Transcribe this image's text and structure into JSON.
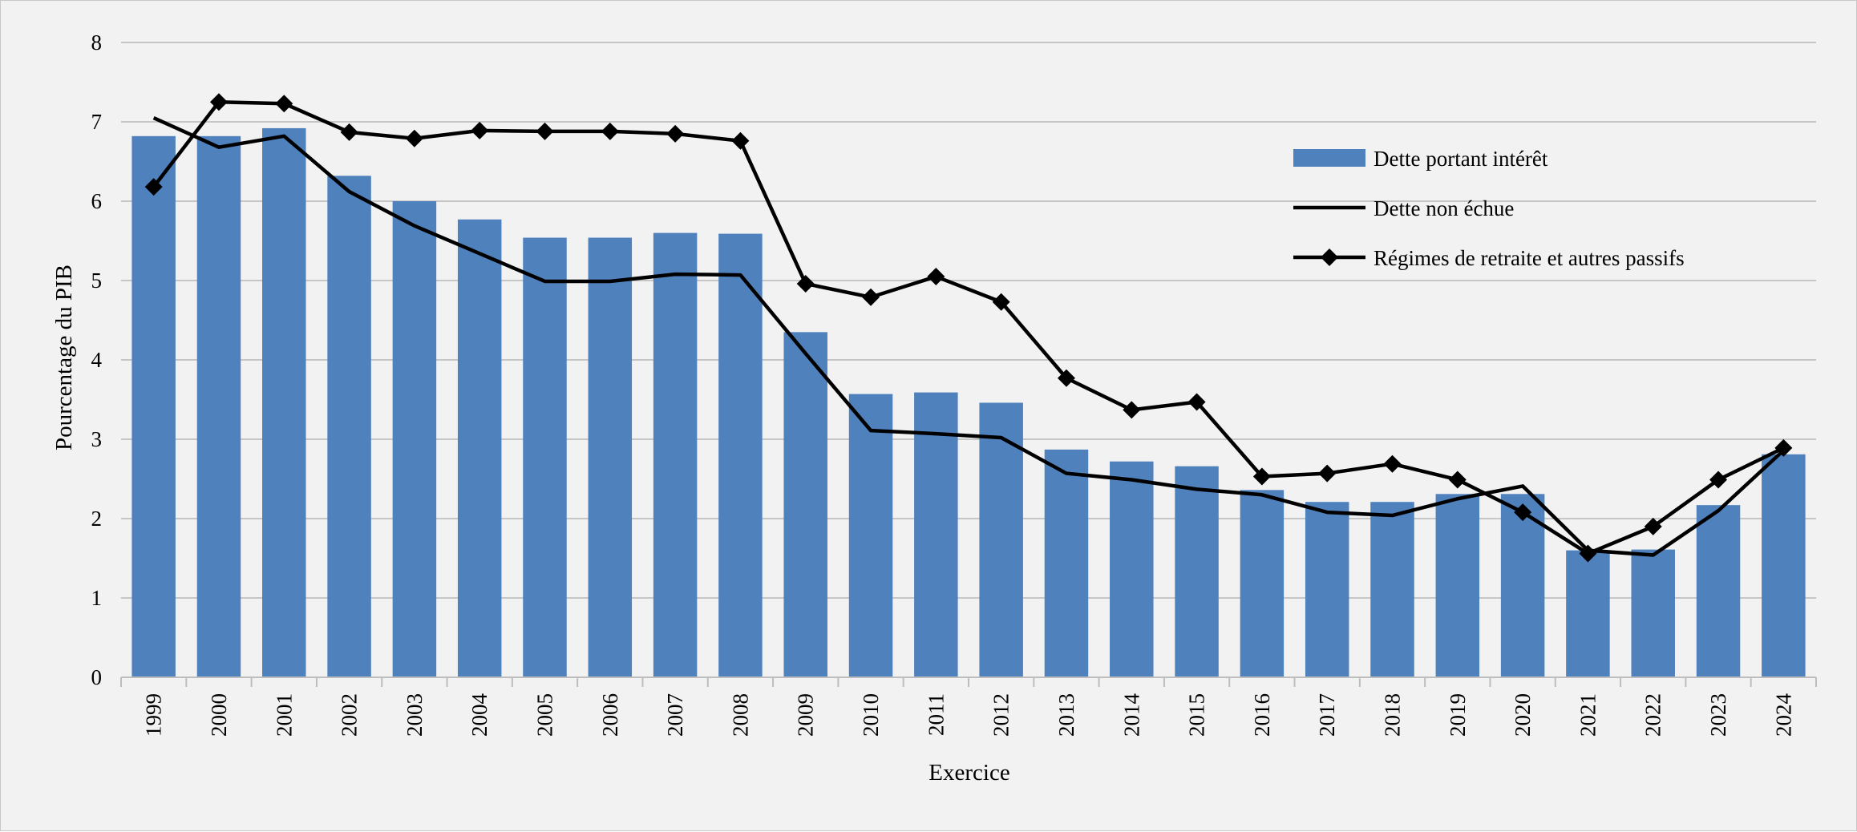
{
  "chart_data": {
    "type": "bar",
    "title": "",
    "xlabel": "Exercice",
    "ylabel": "Pourcentage du PIB",
    "ylim": [
      0,
      8
    ],
    "yticks": [
      0,
      1,
      2,
      3,
      4,
      5,
      6,
      7,
      8
    ],
    "grid": "horizontal",
    "legend_position": "top-right",
    "categories": [
      "1999",
      "2000",
      "2001",
      "2002",
      "2003",
      "2004",
      "2005",
      "2006",
      "2007",
      "2008",
      "2009",
      "2010",
      "2011",
      "2012",
      "2013",
      "2014",
      "2015",
      "2016",
      "2017",
      "2018",
      "2019",
      "2020",
      "2021",
      "2022",
      "2023",
      "2024"
    ],
    "series": [
      {
        "name": "Dette portant intérêt",
        "type": "bar",
        "color": "#4f81bd",
        "values": [
          6.82,
          6.82,
          6.92,
          6.32,
          6.0,
          5.77,
          5.54,
          5.54,
          5.6,
          5.59,
          4.35,
          3.57,
          3.59,
          3.46,
          2.87,
          2.72,
          2.66,
          2.36,
          2.21,
          2.21,
          2.31,
          2.31,
          1.6,
          1.61,
          2.17,
          2.81
        ]
      },
      {
        "name": "Dette non échue",
        "type": "line",
        "color": "#000000",
        "values": [
          7.05,
          6.68,
          6.82,
          6.12,
          5.69,
          5.34,
          4.99,
          4.99,
          5.08,
          5.07,
          4.08,
          3.11,
          3.07,
          3.02,
          2.57,
          2.49,
          2.37,
          2.3,
          2.08,
          2.04,
          2.25,
          2.41,
          1.6,
          1.54,
          2.1,
          2.86
        ]
      },
      {
        "name": "Régimes de retraite et autres passifs",
        "type": "line",
        "marker": "diamond",
        "color": "#000000",
        "values": [
          6.18,
          7.25,
          7.23,
          6.87,
          6.79,
          6.89,
          6.88,
          6.88,
          6.85,
          6.76,
          4.96,
          4.79,
          5.05,
          4.73,
          3.77,
          3.37,
          3.47,
          2.53,
          2.57,
          2.69,
          2.49,
          2.08,
          1.56,
          1.9,
          2.49,
          2.89
        ]
      }
    ]
  }
}
